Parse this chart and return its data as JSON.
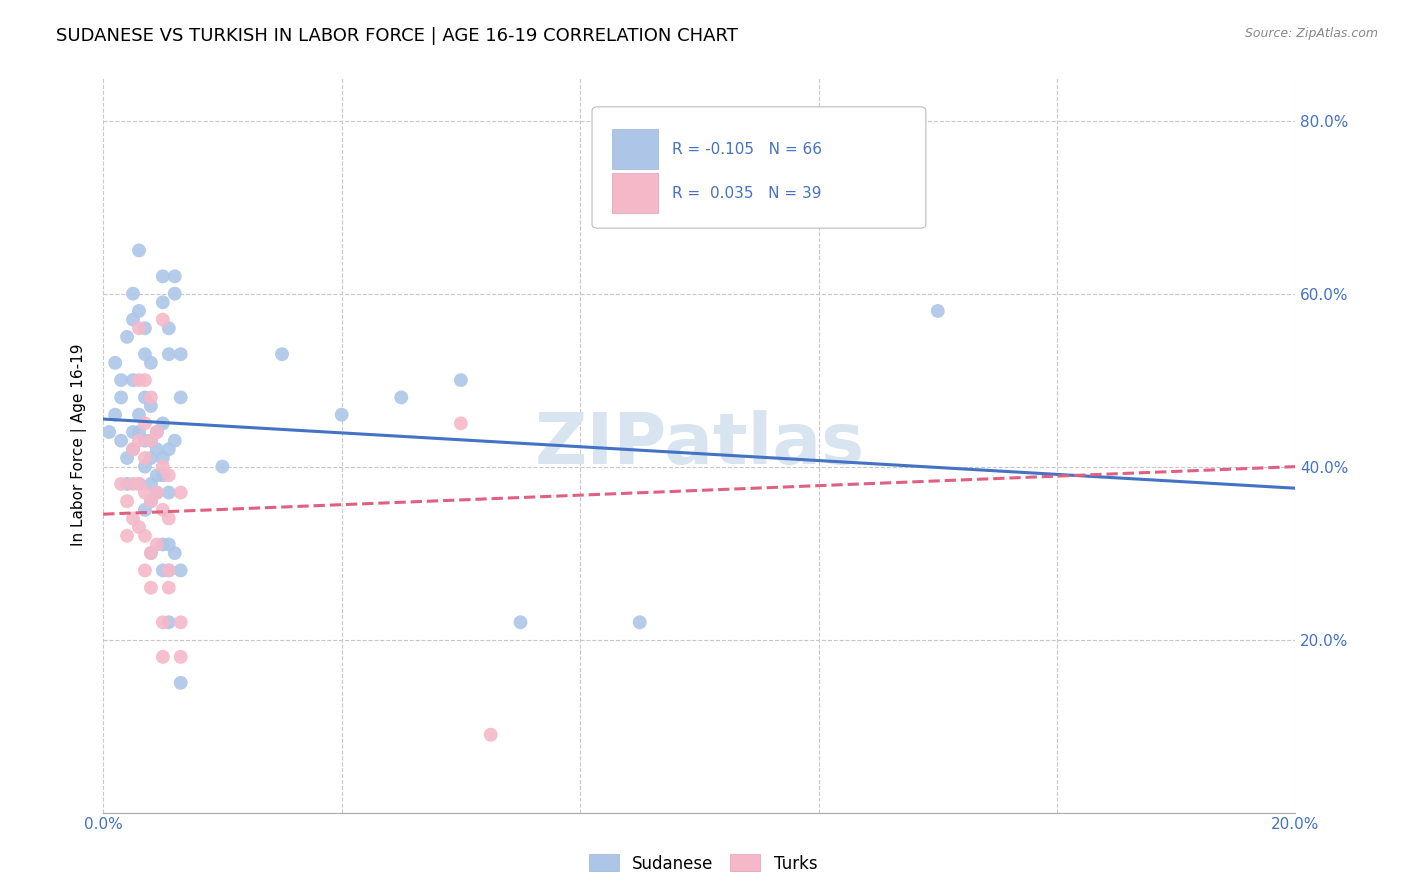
{
  "title": "SUDANESE VS TURKISH IN LABOR FORCE | AGE 16-19 CORRELATION CHART",
  "source": "Source: ZipAtlas.com",
  "ylabel": "In Labor Force | Age 16-19",
  "watermark": "ZIPatlas",
  "legend_entries": [
    {
      "label": "R = -0.105   N = 66",
      "color": "#adc6e8"
    },
    {
      "label": "R =  0.035   N = 39",
      "color": "#f5b8c8"
    }
  ],
  "bottom_legend": [
    {
      "label": "Sudanese",
      "color": "#adc6e8"
    },
    {
      "label": "Turks",
      "color": "#f5b8c8"
    }
  ],
  "xmin": 0.0,
  "xmax": 0.2,
  "ymin": 0.0,
  "ymax": 0.85,
  "yticks": [
    0.0,
    0.2,
    0.4,
    0.6,
    0.8
  ],
  "right_yticklabels": [
    "",
    "20.0%",
    "40.0%",
    "60.0%",
    "80.0%"
  ],
  "xticks": [
    0.0,
    0.04,
    0.08,
    0.12,
    0.16,
    0.2
  ],
  "xticklabels": [
    "0.0%",
    "",
    "",
    "",
    "",
    "20.0%"
  ],
  "blue_scatter": [
    [
      0.001,
      0.44
    ],
    [
      0.002,
      0.46
    ],
    [
      0.002,
      0.52
    ],
    [
      0.003,
      0.48
    ],
    [
      0.003,
      0.43
    ],
    [
      0.003,
      0.5
    ],
    [
      0.004,
      0.55
    ],
    [
      0.004,
      0.38
    ],
    [
      0.004,
      0.41
    ],
    [
      0.005,
      0.6
    ],
    [
      0.005,
      0.57
    ],
    [
      0.005,
      0.44
    ],
    [
      0.005,
      0.5
    ],
    [
      0.005,
      0.42
    ],
    [
      0.006,
      0.65
    ],
    [
      0.006,
      0.58
    ],
    [
      0.006,
      0.44
    ],
    [
      0.006,
      0.46
    ],
    [
      0.006,
      0.38
    ],
    [
      0.007,
      0.56
    ],
    [
      0.007,
      0.53
    ],
    [
      0.007,
      0.48
    ],
    [
      0.007,
      0.43
    ],
    [
      0.007,
      0.4
    ],
    [
      0.007,
      0.35
    ],
    [
      0.008,
      0.52
    ],
    [
      0.008,
      0.47
    ],
    [
      0.008,
      0.43
    ],
    [
      0.008,
      0.41
    ],
    [
      0.008,
      0.38
    ],
    [
      0.008,
      0.36
    ],
    [
      0.008,
      0.3
    ],
    [
      0.009,
      0.44
    ],
    [
      0.009,
      0.42
    ],
    [
      0.009,
      0.39
    ],
    [
      0.009,
      0.37
    ],
    [
      0.01,
      0.62
    ],
    [
      0.01,
      0.59
    ],
    [
      0.01,
      0.45
    ],
    [
      0.01,
      0.41
    ],
    [
      0.01,
      0.39
    ],
    [
      0.01,
      0.31
    ],
    [
      0.01,
      0.28
    ],
    [
      0.011,
      0.56
    ],
    [
      0.011,
      0.53
    ],
    [
      0.011,
      0.42
    ],
    [
      0.011,
      0.37
    ],
    [
      0.011,
      0.31
    ],
    [
      0.011,
      0.28
    ],
    [
      0.011,
      0.22
    ],
    [
      0.012,
      0.62
    ],
    [
      0.012,
      0.6
    ],
    [
      0.012,
      0.43
    ],
    [
      0.012,
      0.3
    ],
    [
      0.013,
      0.53
    ],
    [
      0.013,
      0.48
    ],
    [
      0.013,
      0.28
    ],
    [
      0.013,
      0.15
    ],
    [
      0.02,
      0.4
    ],
    [
      0.03,
      0.53
    ],
    [
      0.04,
      0.46
    ],
    [
      0.05,
      0.48
    ],
    [
      0.06,
      0.5
    ],
    [
      0.07,
      0.22
    ],
    [
      0.09,
      0.22
    ],
    [
      0.14,
      0.58
    ]
  ],
  "pink_scatter": [
    [
      0.003,
      0.38
    ],
    [
      0.004,
      0.36
    ],
    [
      0.004,
      0.32
    ],
    [
      0.005,
      0.42
    ],
    [
      0.005,
      0.38
    ],
    [
      0.005,
      0.34
    ],
    [
      0.006,
      0.56
    ],
    [
      0.006,
      0.5
    ],
    [
      0.006,
      0.43
    ],
    [
      0.006,
      0.38
    ],
    [
      0.006,
      0.33
    ],
    [
      0.007,
      0.5
    ],
    [
      0.007,
      0.45
    ],
    [
      0.007,
      0.41
    ],
    [
      0.007,
      0.37
    ],
    [
      0.007,
      0.32
    ],
    [
      0.007,
      0.28
    ],
    [
      0.008,
      0.48
    ],
    [
      0.008,
      0.43
    ],
    [
      0.008,
      0.36
    ],
    [
      0.008,
      0.3
    ],
    [
      0.008,
      0.26
    ],
    [
      0.009,
      0.44
    ],
    [
      0.009,
      0.37
    ],
    [
      0.009,
      0.31
    ],
    [
      0.01,
      0.57
    ],
    [
      0.01,
      0.4
    ],
    [
      0.01,
      0.35
    ],
    [
      0.01,
      0.22
    ],
    [
      0.01,
      0.18
    ],
    [
      0.011,
      0.39
    ],
    [
      0.011,
      0.34
    ],
    [
      0.011,
      0.28
    ],
    [
      0.011,
      0.26
    ],
    [
      0.013,
      0.37
    ],
    [
      0.013,
      0.22
    ],
    [
      0.013,
      0.18
    ],
    [
      0.06,
      0.45
    ],
    [
      0.065,
      0.09
    ]
  ],
  "blue_line_x": [
    0.0,
    0.2
  ],
  "blue_line_y": [
    0.455,
    0.375
  ],
  "pink_line_x": [
    0.0,
    0.2
  ],
  "pink_line_y": [
    0.345,
    0.4
  ],
  "blue_line_color": "#4472c4",
  "pink_line_color": "#e06080",
  "scatter_blue_color": "#adc6e8",
  "scatter_pink_color": "#f5b8c8",
  "scatter_size": 100,
  "background_color": "#ffffff",
  "grid_color": "#c8c8c8",
  "title_fontsize": 13,
  "axis_label_fontsize": 11,
  "tick_fontsize": 11,
  "tick_color": "#4472c4",
  "watermark_color": "#d8e4f0",
  "watermark_fontsize": 52
}
